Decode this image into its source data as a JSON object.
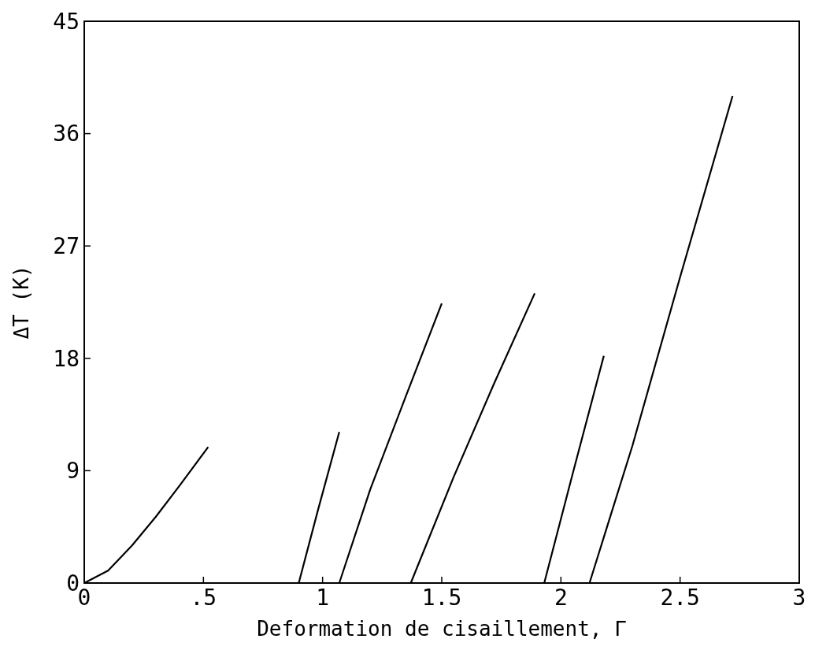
{
  "chart_data": {
    "type": "line",
    "xlabel": "Deformation de cisaillement, Γ",
    "ylabel": "ΔT (K)",
    "xlim": [
      0,
      3
    ],
    "ylim": [
      0,
      45
    ],
    "xticks": [
      0,
      {
        "value": 0.5,
        "label": ".5"
      },
      1,
      1.5,
      2,
      2.5,
      3
    ],
    "yticks": [
      0,
      9,
      18,
      27,
      36,
      45
    ],
    "grid": false,
    "marker": "none",
    "line_style": "solid",
    "series": [
      {
        "color": "#000000",
        "x": [
          0,
          0.1,
          0.2,
          0.3,
          0.4,
          0.52
        ],
        "values": [
          0,
          1,
          3,
          5.3,
          7.8,
          10.9
        ]
      },
      {
        "color": "#000000",
        "x": [
          0.9,
          0.98,
          1.07
        ],
        "values": [
          0,
          5.8,
          12.1
        ]
      },
      {
        "color": "#000000",
        "x": [
          1.07,
          1.2,
          1.35,
          1.5
        ],
        "values": [
          0,
          7.5,
          15,
          22.4
        ]
      },
      {
        "color": "#000000",
        "x": [
          1.37,
          1.55,
          1.72,
          1.89
        ],
        "values": [
          0,
          8.5,
          16,
          23.2
        ]
      },
      {
        "color": "#000000",
        "x": [
          1.93,
          2.05,
          2.18
        ],
        "values": [
          0,
          8.8,
          18.2
        ]
      },
      {
        "color": "#000000",
        "x": [
          2.12,
          2.3,
          2.5,
          2.72
        ],
        "values": [
          0,
          11,
          24.5,
          39
        ]
      }
    ]
  }
}
